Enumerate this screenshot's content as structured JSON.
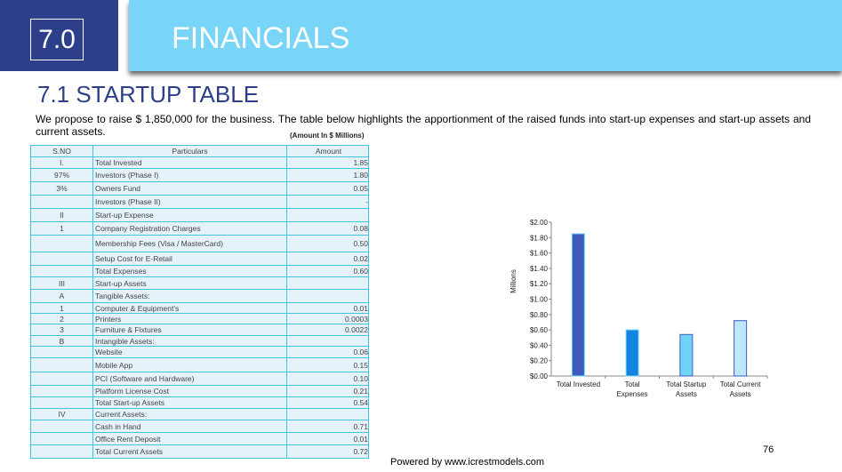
{
  "header": {
    "section_number": "7.0",
    "title": "FINANCIALS"
  },
  "subheading": "7.1 STARTUP TABLE",
  "intro": "We propose to raise $ 1,850,000 for the business. The table below highlights the apportionment of the raised funds into start-up expenses and start-up assets and current assets.",
  "unit_note": "(Amount In $ Millions)",
  "table": {
    "headers": [
      "S.NO",
      "Particulars",
      "Amount"
    ],
    "rows": [
      [
        "I.",
        "Total Invested",
        "1.85"
      ],
      [
        "97%",
        "Investors (Phase I)",
        "1.80"
      ],
      [
        "3%",
        "Owners Fund",
        "0.05"
      ],
      [
        "",
        "Investors (Phase II)",
        "-"
      ],
      [
        "II",
        "Start-up Expense",
        ""
      ],
      [
        "1",
        "Company Registration Charges",
        "0.08"
      ],
      [
        "",
        "Membership Fees (Visa / MasterCard)",
        "0.50"
      ],
      [
        "",
        "Setup Cost for E-Retail",
        "0.02"
      ],
      [
        "",
        "Total Expenses",
        "0.60"
      ],
      [
        "III",
        "Start-up Assets",
        ""
      ],
      [
        "A",
        "Tangible Assets:",
        ""
      ],
      [
        "1",
        "Computer & Equipment's",
        "0.01"
      ],
      [
        "2",
        "Printers",
        "0.0003"
      ],
      [
        "3",
        "Furniture & Fixtures",
        "0.0022"
      ],
      [
        "B",
        "Intangible Assets:",
        ""
      ],
      [
        "",
        "Website",
        "0.06"
      ],
      [
        "",
        "Mobile App",
        "0.15"
      ],
      [
        "",
        "PCI (Software and Hardware)",
        "0.10"
      ],
      [
        "",
        "Platform License Cost",
        "0.21"
      ],
      [
        "",
        "Total Start-up Assets",
        "0.54"
      ],
      [
        "IV",
        "Current Assets:",
        ""
      ],
      [
        "",
        "Cash in Hand",
        "0.71"
      ],
      [
        "",
        "Office Rent Deposit",
        "0.01"
      ],
      [
        "",
        "Total Current Assets",
        "0.72"
      ]
    ]
  },
  "chart_data": {
    "type": "bar",
    "categories": [
      [
        "Total Invested"
      ],
      [
        "Total",
        "Expenses"
      ],
      [
        "Total Startup",
        "Assets"
      ],
      [
        "Total Current",
        "Assets"
      ]
    ],
    "values": [
      1.85,
      0.6,
      0.54,
      0.72
    ],
    "colors": [
      "#3f5bbf",
      "#1384e0",
      "#72d3f8",
      "#bde8fb"
    ],
    "ylabel": "Millions",
    "ylim": [
      0,
      2
    ],
    "yticks": [
      "$0.00",
      "$0.20",
      "$0.40",
      "$0.60",
      "$0.80",
      "$1.00",
      "$1.20",
      "$1.40",
      "$1.60",
      "$1.80",
      "$2.00"
    ],
    "grid": false
  },
  "footer": "Powered by www.icrestmodels.com",
  "page_number": "76"
}
